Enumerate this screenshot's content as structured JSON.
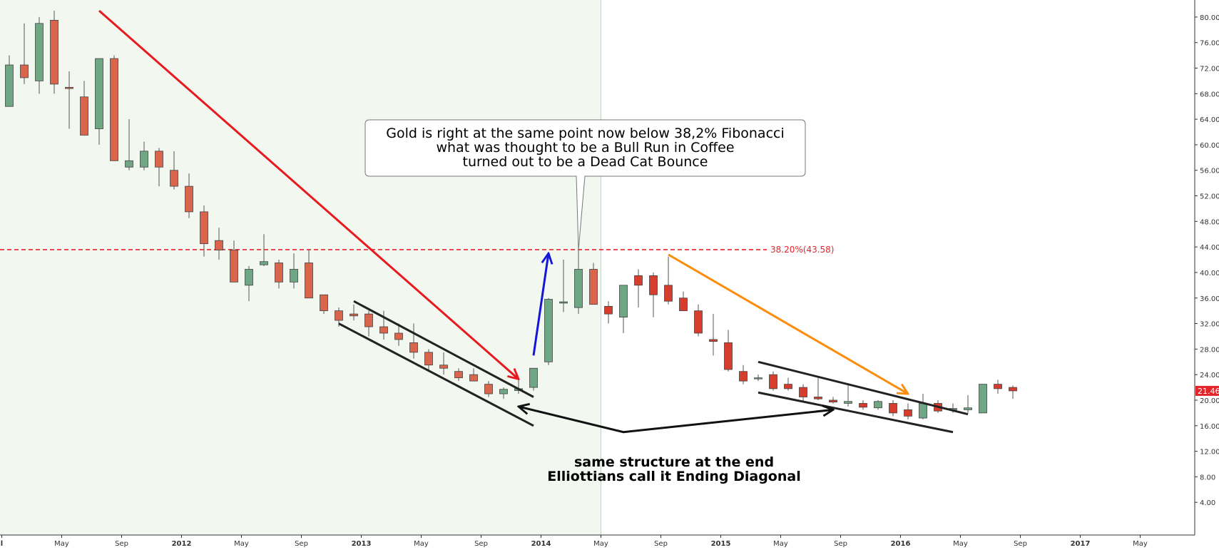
{
  "chart_data": {
    "type": "candlestick",
    "instrument": "Coffee",
    "grid": false,
    "y_axis": {
      "position": "right",
      "ylim": [
        0,
        82
      ],
      "ticks": [
        4,
        8,
        12,
        16,
        20,
        24,
        28,
        32,
        36,
        40,
        44,
        48,
        52,
        56,
        60,
        64,
        68,
        72,
        76,
        80
      ],
      "tick_labels": [
        "4.00",
        "8.00",
        "12.00",
        "16.00",
        "20.00",
        "24.00",
        "28.00",
        "32.00",
        "36.00",
        "40.00",
        "44.00",
        "48.00",
        "52.00",
        "56.00",
        "60.00",
        "64.00",
        "68.00",
        "72.00",
        "76.00",
        "80.00"
      ]
    },
    "x_axis": {
      "start": "2011-01",
      "end": "2017-08",
      "ticks": [
        {
          "date": "2011-01",
          "label": "l",
          "year": true
        },
        {
          "date": "2011-05",
          "label": "May",
          "year": false
        },
        {
          "date": "2011-09",
          "label": "Sep",
          "year": false
        },
        {
          "date": "2012-01",
          "label": "2012",
          "year": true
        },
        {
          "date": "2012-05",
          "label": "May",
          "year": false
        },
        {
          "date": "2012-09",
          "label": "Sep",
          "year": false
        },
        {
          "date": "2013-01",
          "label": "2013",
          "year": true
        },
        {
          "date": "2013-05",
          "label": "May",
          "year": false
        },
        {
          "date": "2013-09",
          "label": "Sep",
          "year": false
        },
        {
          "date": "2014-01",
          "label": "2014",
          "year": true
        },
        {
          "date": "2014-05",
          "label": "May",
          "year": false
        },
        {
          "date": "2014-09",
          "label": "Sep",
          "year": false
        },
        {
          "date": "2015-01",
          "label": "2015",
          "year": true
        },
        {
          "date": "2015-05",
          "label": "May",
          "year": false
        },
        {
          "date": "2015-09",
          "label": "Sep",
          "year": false
        },
        {
          "date": "2016-01",
          "label": "2016",
          "year": true
        },
        {
          "date": "2016-05",
          "label": "May",
          "year": false
        },
        {
          "date": "2016-09",
          "label": "Sep",
          "year": false
        },
        {
          "date": "2017-01",
          "label": "2017",
          "year": true
        },
        {
          "date": "2017-05",
          "label": "May",
          "year": false
        }
      ]
    },
    "candles": [
      {
        "date": "2011-01",
        "o": 66,
        "h": 74,
        "l": 66,
        "c": 72.5
      },
      {
        "date": "2011-02",
        "o": 72.5,
        "h": 79,
        "l": 69.5,
        "c": 70.5
      },
      {
        "date": "2011-03",
        "o": 70,
        "h": 80,
        "l": 68,
        "c": 79
      },
      {
        "date": "2011-04",
        "o": 79.5,
        "h": 81,
        "l": 68,
        "c": 69.5
      },
      {
        "date": "2011-05",
        "o": 69,
        "h": 71.5,
        "l": 62.5,
        "c": 68.8
      },
      {
        "date": "2011-06",
        "o": 67.5,
        "h": 70,
        "l": 61.5,
        "c": 61.5
      },
      {
        "date": "2011-07",
        "o": 62.5,
        "h": 73.5,
        "l": 60,
        "c": 73.5
      },
      {
        "date": "2011-08",
        "o": 73.5,
        "h": 74,
        "l": 57.5,
        "c": 57.5
      },
      {
        "date": "2011-09",
        "o": 56.5,
        "h": 64,
        "l": 56,
        "c": 57.5
      },
      {
        "date": "2011-10",
        "o": 56.5,
        "h": 60.5,
        "l": 56,
        "c": 59
      },
      {
        "date": "2011-11",
        "o": 59,
        "h": 59.5,
        "l": 53.5,
        "c": 56.5
      },
      {
        "date": "2011-12",
        "o": 56,
        "h": 59,
        "l": 53,
        "c": 53.5
      },
      {
        "date": "2012-01",
        "o": 53.5,
        "h": 55.5,
        "l": 48.5,
        "c": 49.5
      },
      {
        "date": "2012-02",
        "o": 49.5,
        "h": 50.5,
        "l": 42.5,
        "c": 44.5
      },
      {
        "date": "2012-03",
        "o": 45,
        "h": 47,
        "l": 42,
        "c": 43.5
      },
      {
        "date": "2012-04",
        "o": 43.5,
        "h": 45,
        "l": 38.5,
        "c": 38.5
      },
      {
        "date": "2012-05",
        "o": 38,
        "h": 41,
        "l": 35.5,
        "c": 40.5
      },
      {
        "date": "2012-06",
        "o": 41.2,
        "h": 46,
        "l": 41,
        "c": 41.7
      },
      {
        "date": "2012-07",
        "o": 41.5,
        "h": 42,
        "l": 37.5,
        "c": 38.5
      },
      {
        "date": "2012-08",
        "o": 38.5,
        "h": 43,
        "l": 37.5,
        "c": 40.5
      },
      {
        "date": "2012-09",
        "o": 41.5,
        "h": 43.5,
        "l": 36,
        "c": 36
      },
      {
        "date": "2012-10",
        "o": 36.5,
        "h": 36.5,
        "l": 33.5,
        "c": 34
      },
      {
        "date": "2012-11",
        "o": 34,
        "h": 34.5,
        "l": 31.5,
        "c": 32.5
      },
      {
        "date": "2012-12",
        "o": 33.5,
        "h": 35,
        "l": 32.5,
        "c": 33.2
      },
      {
        "date": "2013-01",
        "o": 33.5,
        "h": 34,
        "l": 30,
        "c": 31.5
      },
      {
        "date": "2013-02",
        "o": 31.5,
        "h": 34,
        "l": 29.5,
        "c": 30.5
      },
      {
        "date": "2013-03",
        "o": 30.5,
        "h": 32,
        "l": 28.5,
        "c": 29.5
      },
      {
        "date": "2013-04",
        "o": 29,
        "h": 32,
        "l": 26.5,
        "c": 27.5
      },
      {
        "date": "2013-05",
        "o": 27.5,
        "h": 28,
        "l": 24.5,
        "c": 25.5
      },
      {
        "date": "2013-06",
        "o": 25.5,
        "h": 27.5,
        "l": 24,
        "c": 25
      },
      {
        "date": "2013-07",
        "o": 24.5,
        "h": 25,
        "l": 23,
        "c": 23.5
      },
      {
        "date": "2013-08",
        "o": 24,
        "h": 25,
        "l": 23,
        "c": 23
      },
      {
        "date": "2013-09",
        "o": 22.5,
        "h": 23,
        "l": 20.5,
        "c": 21
      },
      {
        "date": "2013-10",
        "o": 21,
        "h": 22,
        "l": 20.2,
        "c": 21.7
      },
      {
        "date": "2013-11",
        "o": 21.5,
        "h": 23.5,
        "l": 21,
        "c": 21.8
      },
      {
        "date": "2013-12",
        "o": 22,
        "h": 25,
        "l": 21.5,
        "c": 25
      },
      {
        "date": "2014-01",
        "o": 26,
        "h": 36,
        "l": 25.5,
        "c": 35.8
      },
      {
        "date": "2014-02",
        "o": 35.2,
        "h": 42,
        "l": 33.8,
        "c": 35.4
      },
      {
        "date": "2014-03",
        "o": 34.5,
        "h": 43.5,
        "l": 33.5,
        "c": 40.5
      },
      {
        "date": "2014-04",
        "o": 40.5,
        "h": 41.5,
        "l": 35,
        "c": 35
      },
      {
        "date": "2014-05",
        "o": 34.7,
        "h": 35.5,
        "l": 32,
        "c": 33.5
      },
      {
        "date": "2014-06",
        "o": 33,
        "h": 38,
        "l": 30.5,
        "c": 38
      },
      {
        "date": "2014-07",
        "o": 39.5,
        "h": 40.5,
        "l": 34.5,
        "c": 38
      },
      {
        "date": "2014-08",
        "o": 39.5,
        "h": 40,
        "l": 33,
        "c": 36.5
      },
      {
        "date": "2014-09",
        "o": 38,
        "h": 42.5,
        "l": 35,
        "c": 35.5
      },
      {
        "date": "2014-10",
        "o": 36,
        "h": 37,
        "l": 34,
        "c": 34
      },
      {
        "date": "2014-11",
        "o": 34,
        "h": 35,
        "l": 30,
        "c": 30.5
      },
      {
        "date": "2014-12",
        "o": 29.5,
        "h": 33.5,
        "l": 27,
        "c": 29.2
      },
      {
        "date": "2015-01",
        "o": 29,
        "h": 31,
        "l": 24.5,
        "c": 24.8
      },
      {
        "date": "2015-02",
        "o": 24.5,
        "h": 25.5,
        "l": 22.5,
        "c": 23
      },
      {
        "date": "2015-03",
        "o": 23.5,
        "h": 24,
        "l": 23,
        "c": 23.5
      },
      {
        "date": "2015-04",
        "o": 24,
        "h": 24.5,
        "l": 21.5,
        "c": 21.8
      },
      {
        "date": "2015-05",
        "o": 22.5,
        "h": 23.5,
        "l": 21.5,
        "c": 21.8
      },
      {
        "date": "2015-06",
        "o": 22,
        "h": 22.5,
        "l": 19.8,
        "c": 20.5
      },
      {
        "date": "2015-07",
        "o": 20.5,
        "h": 23.5,
        "l": 20,
        "c": 20.2
      },
      {
        "date": "2015-08",
        "o": 20,
        "h": 20.5,
        "l": 19.5,
        "c": 19.7
      },
      {
        "date": "2015-09",
        "o": 19.5,
        "h": 22.5,
        "l": 19,
        "c": 19.8
      },
      {
        "date": "2015-10",
        "o": 19.5,
        "h": 20,
        "l": 18.5,
        "c": 18.9
      },
      {
        "date": "2015-11",
        "o": 18.8,
        "h": 20,
        "l": 18.5,
        "c": 19.8
      },
      {
        "date": "2015-12",
        "o": 19.5,
        "h": 20,
        "l": 17.5,
        "c": 18
      },
      {
        "date": "2016-01",
        "o": 18.5,
        "h": 19.5,
        "l": 17,
        "c": 17.5
      },
      {
        "date": "2016-02",
        "o": 17.2,
        "h": 21,
        "l": 17,
        "c": 19.5
      },
      {
        "date": "2016-03",
        "o": 19.5,
        "h": 20,
        "l": 18,
        "c": 18.3
      },
      {
        "date": "2016-04",
        "o": 18.5,
        "h": 19.5,
        "l": 18,
        "c": 18.7
      },
      {
        "date": "2016-05",
        "o": 18.5,
        "h": 20.8,
        "l": 18,
        "c": 18.8
      },
      {
        "date": "2016-06",
        "o": 18,
        "h": 22.5,
        "l": 18,
        "c": 22.5
      },
      {
        "date": "2016-07",
        "o": 22.5,
        "h": 23.2,
        "l": 21,
        "c": 21.8
      },
      {
        "date": "2016-08",
        "o": 22,
        "h": 22.3,
        "l": 20.2,
        "c": 21.46
      }
    ],
    "fibonacci": {
      "level": 43.58,
      "label": "38.20%(43.58)",
      "color": "#e4242b"
    },
    "last_price": {
      "value": 21.46,
      "label": "21.46",
      "color": "#e4242b"
    },
    "highlight_region": {
      "from": "2011-01",
      "to": "2014-04",
      "color": "#f2f7f0"
    },
    "callout": {
      "lines": [
        "Gold is right at the same point now below 38,2% Fibonacci",
        "what was thought to be a Bull Run in Coffee",
        "turned out to be a Dead Cat Bounce"
      ],
      "anchor": {
        "date": "2014-03",
        "value": 43.5
      }
    },
    "note": {
      "lines": [
        "same structure at the end",
        "Elliottians call it Ending Diagonal"
      ]
    },
    "trendlines": [
      {
        "name": "red-trend-arrow",
        "color": "#e8191f",
        "from": {
          "date": "2011-07",
          "value": 81
        },
        "to": {
          "date": "2013-11",
          "value": 23.3
        },
        "arrow": true
      },
      {
        "name": "blue-trend-arrow",
        "color": "#1515d9",
        "from": {
          "date": "2013-12",
          "value": 27
        },
        "to": {
          "date": "2014-01",
          "value": 43
        },
        "arrow": true
      },
      {
        "name": "orange-trend-arrow",
        "color": "#fb8d0b",
        "from": {
          "date": "2014-09",
          "value": 42.8
        },
        "to": {
          "date": "2016-01",
          "value": 21
        },
        "arrow": true
      },
      {
        "name": "diagonal-1-upper",
        "color": "#222222",
        "from": {
          "date": "2012-12",
          "value": 35.5
        },
        "to": {
          "date": "2013-12",
          "value": 20.5
        },
        "arrow": false
      },
      {
        "name": "diagonal-1-lower",
        "color": "#222222",
        "from": {
          "date": "2012-11",
          "value": 32
        },
        "to": {
          "date": "2013-12",
          "value": 16
        },
        "arrow": false
      },
      {
        "name": "diagonal-2-upper",
        "color": "#222222",
        "from": {
          "date": "2015-03",
          "value": 26
        },
        "to": {
          "date": "2016-05",
          "value": 17.8
        },
        "arrow": false
      },
      {
        "name": "diagonal-2-lower",
        "color": "#222222",
        "from": {
          "date": "2015-03",
          "value": 21.2
        },
        "to": {
          "date": "2016-04",
          "value": 15
        },
        "arrow": false
      }
    ],
    "double_arrow": {
      "color": "#111111",
      "left": {
        "date": "2013-11",
        "value": 19
      },
      "mid": {
        "date": "2014-06",
        "value": 15
      },
      "right": {
        "date": "2015-08",
        "value": 18.5
      }
    },
    "colors": {
      "bull": "#6fa784",
      "bear": "#d8654c",
      "bear_strong": "#d63d2c",
      "axis": "#333333"
    }
  }
}
